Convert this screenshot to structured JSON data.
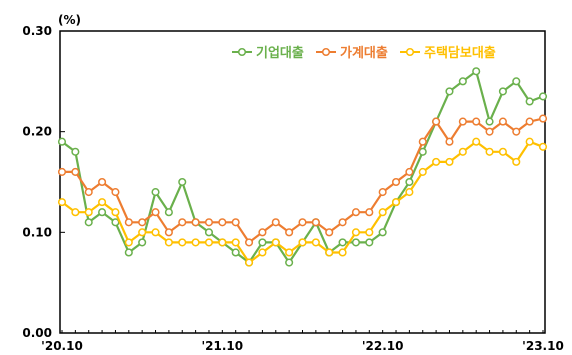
{
  "chart_data": {
    "type": "line",
    "unit_label": "(%)",
    "ylim": [
      0,
      0.3
    ],
    "yticks": [
      "0.00",
      "0.10",
      "0.20",
      "0.30"
    ],
    "xtick_labels": [
      {
        "label": "'20.10",
        "index": 0
      },
      {
        "label": "'21.10",
        "index": 12
      },
      {
        "label": "'22.10",
        "index": 24
      },
      {
        "label": "'23.10",
        "index": 36
      }
    ],
    "grid": false,
    "legend_position": "top-right",
    "series": [
      {
        "name": "기업대출",
        "color": "#6ab04c",
        "values": [
          0.19,
          0.18,
          0.11,
          0.12,
          0.11,
          0.08,
          0.09,
          0.14,
          0.12,
          0.15,
          0.11,
          0.1,
          0.09,
          0.08,
          0.07,
          0.09,
          0.09,
          0.07,
          0.09,
          0.11,
          0.08,
          0.09,
          0.09,
          0.09,
          0.1,
          0.13,
          0.15,
          0.18,
          0.21,
          0.24,
          0.25,
          0.26,
          0.21,
          0.24,
          0.25,
          0.23,
          0.235
        ]
      },
      {
        "name": "가계대출",
        "color": "#ed7d31",
        "values": [
          0.16,
          0.16,
          0.14,
          0.15,
          0.14,
          0.11,
          0.11,
          0.12,
          0.1,
          0.11,
          0.11,
          0.11,
          0.11,
          0.11,
          0.09,
          0.1,
          0.11,
          0.1,
          0.11,
          0.11,
          0.1,
          0.11,
          0.12,
          0.12,
          0.14,
          0.15,
          0.16,
          0.19,
          0.21,
          0.19,
          0.21,
          0.21,
          0.2,
          0.21,
          0.2,
          0.21,
          0.213
        ]
      },
      {
        "name": "주택담보대출",
        "color": "#ffc000",
        "values": [
          0.13,
          0.12,
          0.12,
          0.13,
          0.12,
          0.09,
          0.1,
          0.1,
          0.09,
          0.09,
          0.09,
          0.09,
          0.09,
          0.09,
          0.07,
          0.08,
          0.09,
          0.08,
          0.09,
          0.09,
          0.08,
          0.08,
          0.1,
          0.1,
          0.12,
          0.13,
          0.14,
          0.16,
          0.17,
          0.17,
          0.18,
          0.19,
          0.18,
          0.18,
          0.17,
          0.19,
          0.185
        ]
      }
    ]
  }
}
